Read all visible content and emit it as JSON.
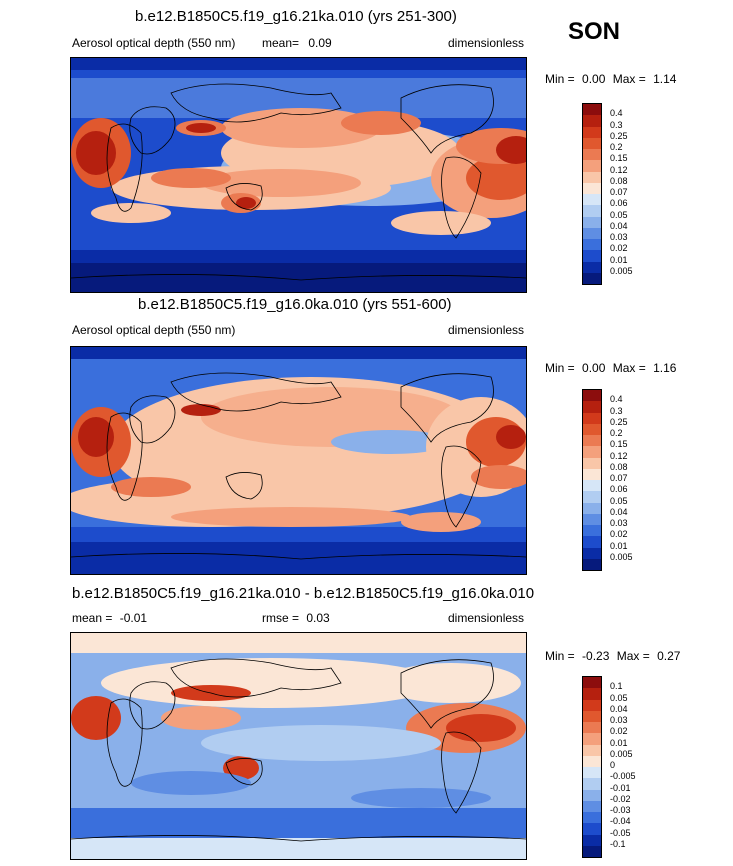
{
  "season": "SON",
  "panels": [
    {
      "title": "b.e12.B1850C5.f19_g16.21ka.010 (yrs 251-300)",
      "variable": "Aerosol optical depth (550 nm)",
      "mean_label": "mean=",
      "mean_value": "0.09",
      "units": "dimensionless",
      "min_label": "Min =",
      "min_value": "0.00",
      "max_label": "Max =",
      "max_value": "1.14",
      "levels": [
        "0.4",
        "0.3",
        "0.25",
        "0.2",
        "0.15",
        "0.12",
        "0.08",
        "0.07",
        "0.06",
        "0.05",
        "0.04",
        "0.03",
        "0.02",
        "0.01",
        "0.005"
      ]
    },
    {
      "title": "b.e12.B1850C5.f19_g16.0ka.010 (yrs 551-600)",
      "variable": "Aerosol optical depth (550 nm)",
      "units": "dimensionless",
      "min_label": "Min =",
      "min_value": "0.00",
      "max_label": "Max =",
      "max_value": "1.16",
      "levels": [
        "0.4",
        "0.3",
        "0.25",
        "0.2",
        "0.15",
        "0.12",
        "0.08",
        "0.07",
        "0.06",
        "0.05",
        "0.04",
        "0.03",
        "0.02",
        "0.01",
        "0.005"
      ]
    },
    {
      "title": "b.e12.B1850C5.f19_g16.21ka.010 - b.e12.B1850C5.f19_g16.0ka.010",
      "mean_label": "mean =",
      "mean_value": "-0.01",
      "rmse_label": "rmse =",
      "rmse_value": "0.03",
      "units": "dimensionless",
      "min_label": "Min =",
      "min_value": "-0.23",
      "max_label": "Max =",
      "max_value": "0.27",
      "levels": [
        "0.1",
        "0.05",
        "0.04",
        "0.03",
        "0.02",
        "0.01",
        "0.005",
        "0",
        "-0.005",
        "-0.01",
        "-0.02",
        "-0.03",
        "-0.04",
        "-0.05",
        "-0.1"
      ]
    }
  ],
  "colors": {
    "scale": [
      "#8c0d0d",
      "#b5200f",
      "#d23a1b",
      "#e0582e",
      "#eb7a52",
      "#f4a07c",
      "#f9c6a8",
      "#fbe6d6",
      "#d6e6f7",
      "#b1cdf1",
      "#8ab0ea",
      "#5f8ee3",
      "#3a6fdc",
      "#1d4ccc",
      "#0a2ca6",
      "#061a7c"
    ]
  }
}
